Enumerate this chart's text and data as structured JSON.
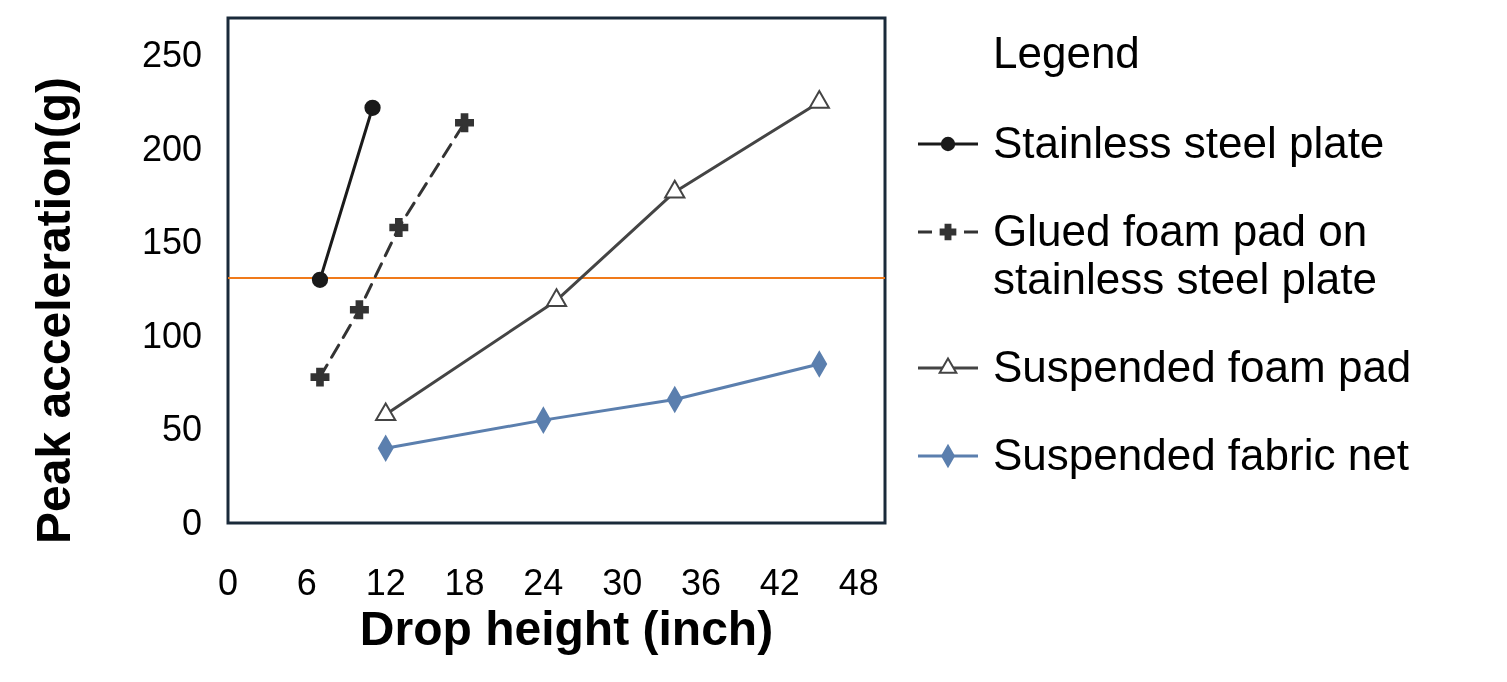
{
  "chart_data": {
    "type": "line",
    "xlabel": "Drop height (inch)",
    "ylabel": "Peak acceleration(g)",
    "legend_title": "Legend",
    "xlim": [
      0,
      50
    ],
    "ylim": [
      0,
      270
    ],
    "xticks": [
      0,
      6,
      12,
      18,
      24,
      30,
      36,
      42,
      48
    ],
    "yticks": [
      0,
      50,
      100,
      150,
      200,
      250
    ],
    "grid": false,
    "legend": "right",
    "series": [
      {
        "name": "Stainless steel plate",
        "color": "#1a1a1a",
        "marker": "circle",
        "line_style": "solid",
        "x": [
          7,
          11
        ],
        "values": [
          130,
          222
        ]
      },
      {
        "name": "Glued foam pad on stainless steel plate",
        "color": "#333333",
        "marker": "cross",
        "line_style": "dashed",
        "x": [
          7,
          10,
          13,
          18
        ],
        "values": [
          78,
          114,
          158,
          214
        ]
      },
      {
        "name": "Suspended foam pad",
        "color": "#444444",
        "marker": "triangle",
        "line_style": "solid",
        "x": [
          12,
          25,
          34,
          45
        ],
        "values": [
          58,
          119,
          177,
          225
        ]
      },
      {
        "name": "Suspended fabric net",
        "color": "#5b7fae",
        "marker": "diamond",
        "line_style": "solid",
        "x": [
          12,
          24,
          34,
          45
        ],
        "values": [
          40,
          55,
          66,
          85
        ]
      }
    ],
    "ref_lines": [
      {
        "axis": "y",
        "value": 131,
        "color": "#f07a1a"
      }
    ]
  }
}
